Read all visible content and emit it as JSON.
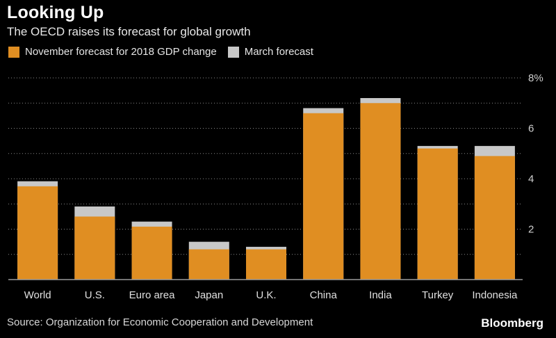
{
  "header": {
    "title": "Looking Up",
    "subtitle": "The OECD raises its forecast for global growth"
  },
  "footer": {
    "source": "Source: Organization for Economic Cooperation and Development",
    "brand": "Bloomberg"
  },
  "colors": {
    "november": "#e08e22",
    "march": "#c8c8c8",
    "grid": "#8a8a8a",
    "axis": "#9a9a9a"
  },
  "chart_data": {
    "type": "bar",
    "title": "Looking Up",
    "subtitle": "The OECD raises its forecast for global growth",
    "xlabel": "",
    "ylabel": "",
    "ylim": [
      0,
      8
    ],
    "yticks": [
      2,
      4,
      6,
      8
    ],
    "ytick_labels": [
      "2",
      "4",
      "6",
      "8%"
    ],
    "grid": true,
    "legend_position": "top-left",
    "categories": [
      "World",
      "U.S.",
      "Euro area",
      "Japan",
      "U.K.",
      "China",
      "India",
      "Turkey",
      "Indonesia"
    ],
    "series": [
      {
        "name": "November forecast for 2018 GDP change",
        "values": [
          3.7,
          2.5,
          2.1,
          1.2,
          1.2,
          6.6,
          7.0,
          5.2,
          4.9
        ]
      },
      {
        "name": "March forecast",
        "values": [
          3.9,
          2.9,
          2.3,
          1.5,
          1.3,
          6.8,
          7.2,
          5.3,
          5.3
        ]
      }
    ]
  }
}
